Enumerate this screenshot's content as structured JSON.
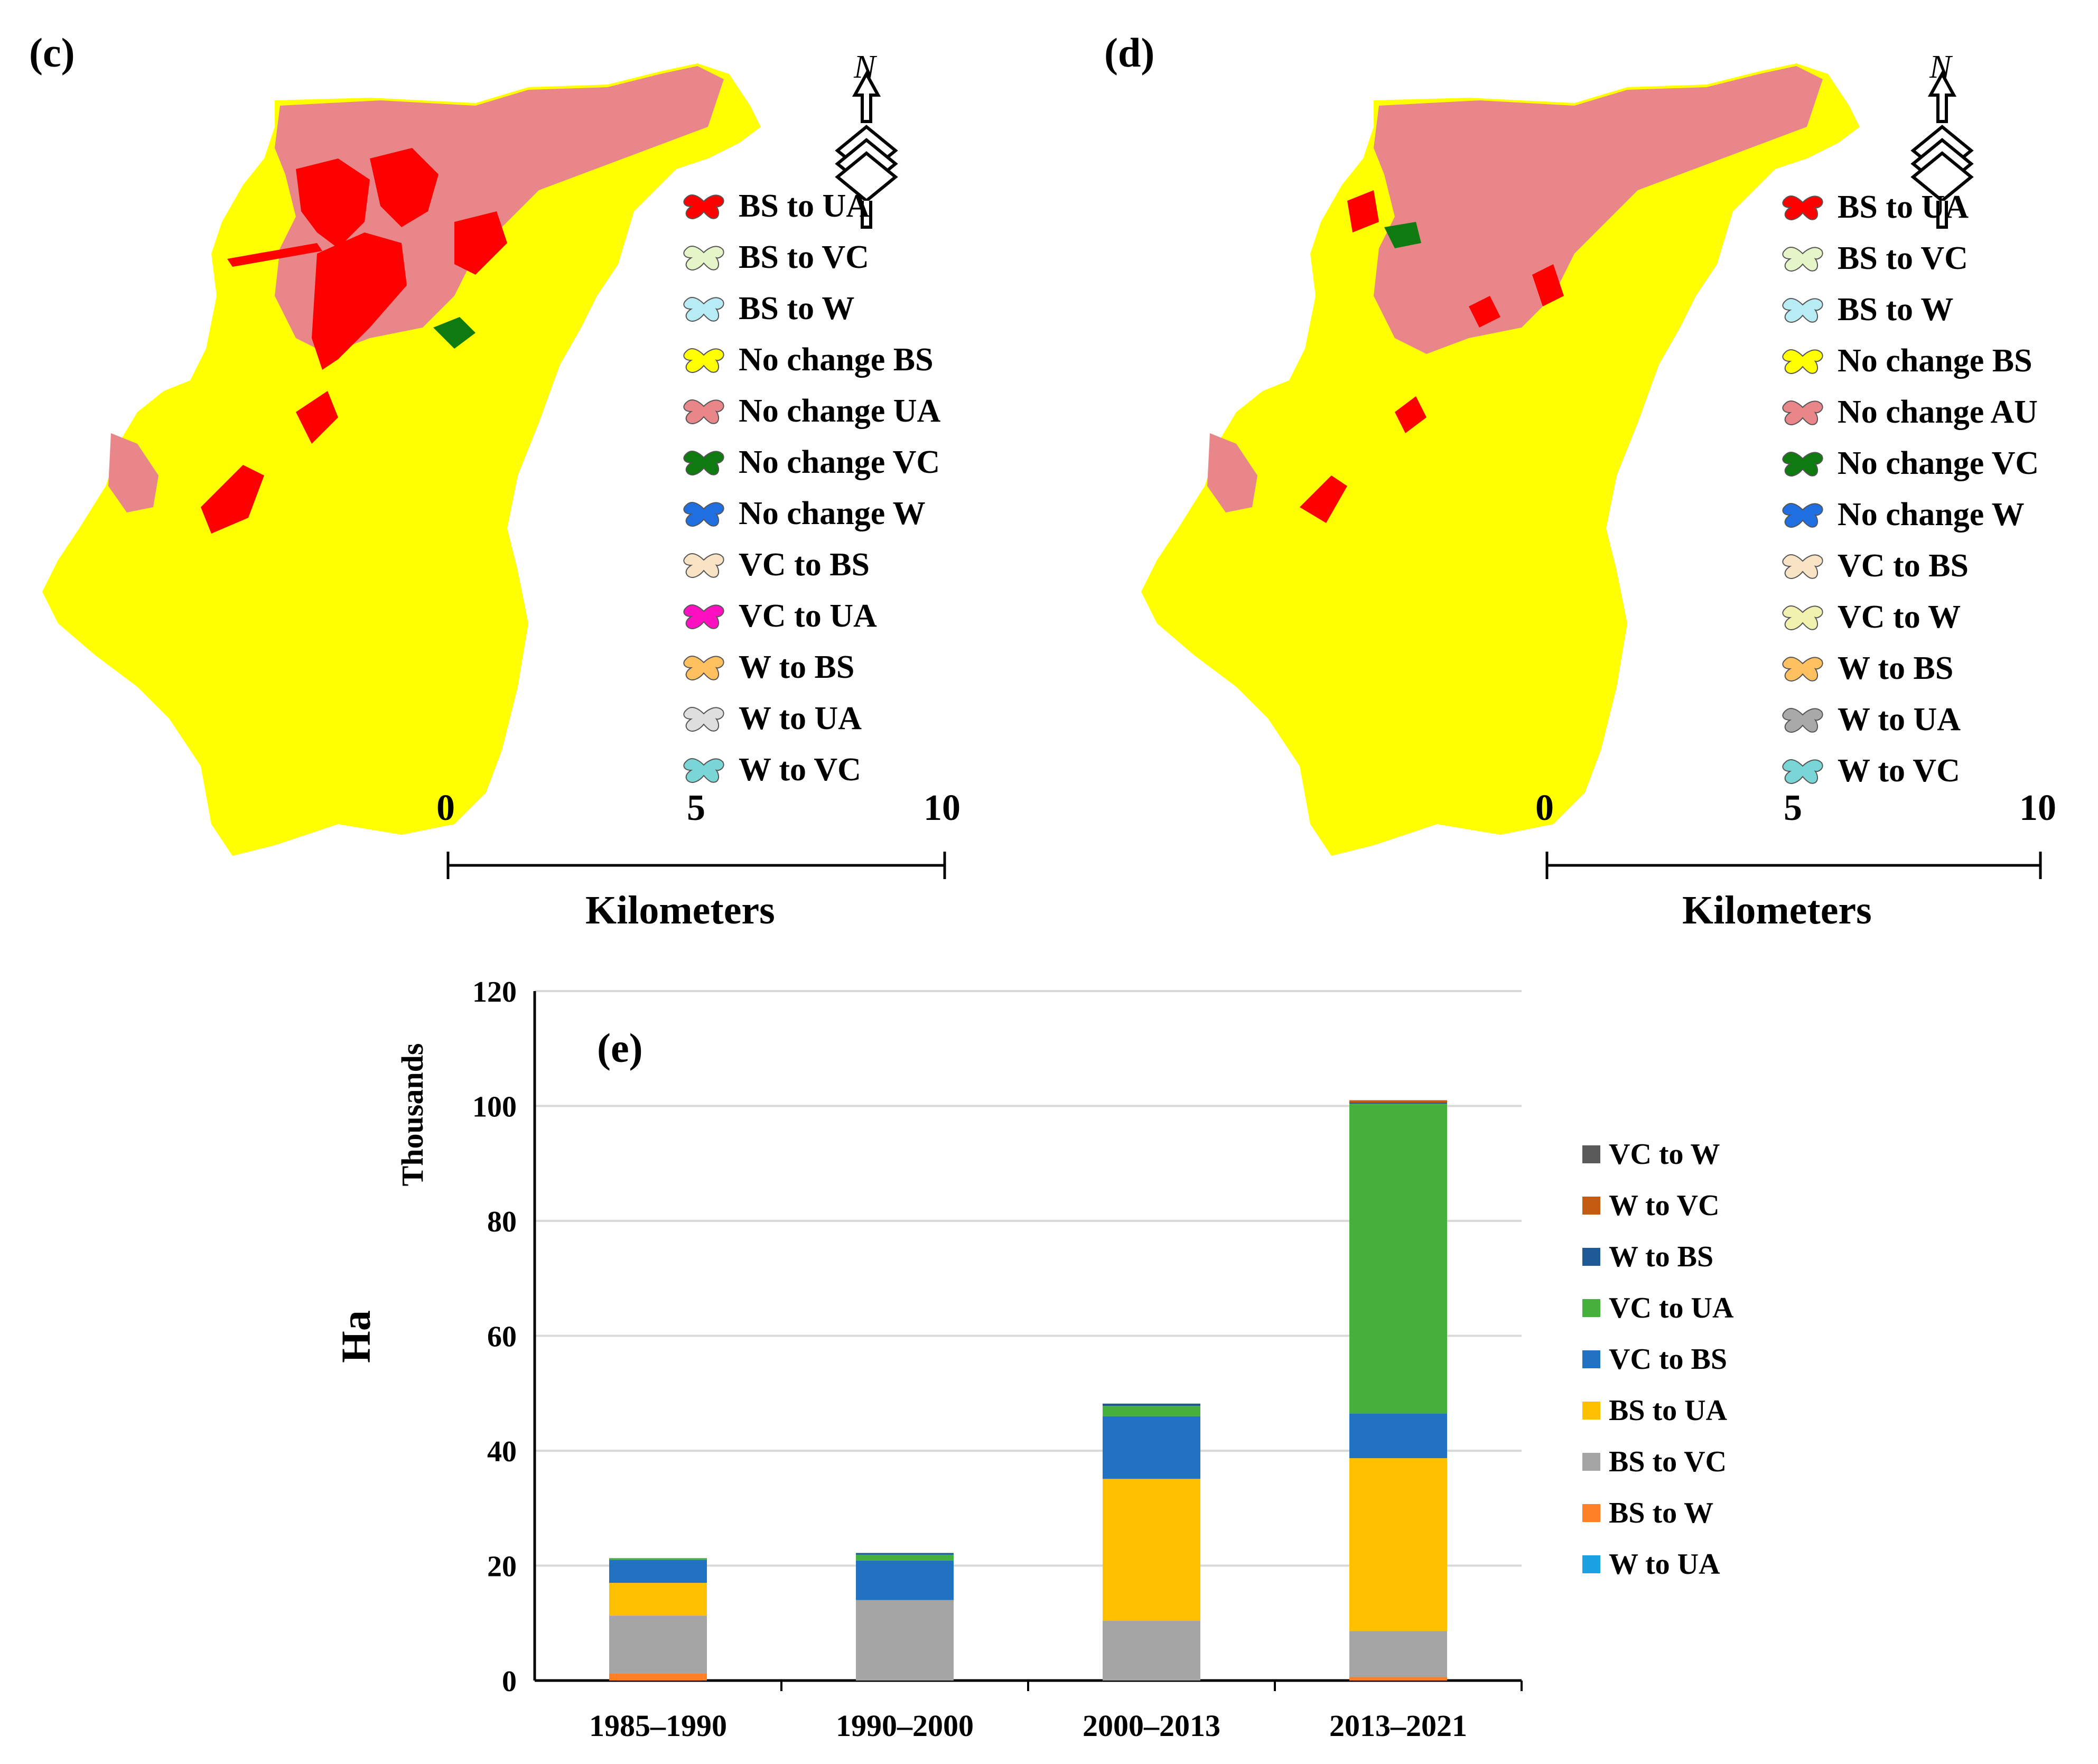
{
  "panels": {
    "c": {
      "label": "(c)",
      "north": "N",
      "legend": [
        {
          "label": "BS to UA",
          "color": "#ff0000"
        },
        {
          "label": "BS to VC",
          "color": "#e6f5c8"
        },
        {
          "label": "BS to W",
          "color": "#b8ecf5"
        },
        {
          "label": "No change BS",
          "color": "#ffff00"
        },
        {
          "label": "No change UA",
          "color": "#e8868a"
        },
        {
          "label": "No change VC",
          "color": "#0f7a0f"
        },
        {
          "label": "No change W",
          "color": "#1f6fe0"
        },
        {
          "label": "VC to BS",
          "color": "#f8e4c4"
        },
        {
          "label": "VC to UA",
          "color": "#ff10c0"
        },
        {
          "label": "W to BS",
          "color": "#ffc060"
        },
        {
          "label": "W to UA",
          "color": "#dedede"
        },
        {
          "label": "W to VC",
          "color": "#7ad6d6"
        }
      ],
      "scale": {
        "ticks": [
          "0",
          "5",
          "10"
        ],
        "unit": "Kilometers"
      }
    },
    "d": {
      "label": "(d)",
      "north": "N",
      "legend": [
        {
          "label": "BS to UA",
          "color": "#ff0000"
        },
        {
          "label": "BS to VC",
          "color": "#e6f5c8"
        },
        {
          "label": "BS to W",
          "color": "#b8ecf5"
        },
        {
          "label": "No change BS",
          "color": "#ffff00"
        },
        {
          "label": "No change AU",
          "color": "#e8868a"
        },
        {
          "label": "No change VC",
          "color": "#0f7a0f"
        },
        {
          "label": "No change W",
          "color": "#1f6fe0"
        },
        {
          "label": "VC to BS",
          "color": "#f8e4c4"
        },
        {
          "label": "VC to W",
          "color": "#f2f2b0"
        },
        {
          "label": "W to BS",
          "color": "#ffc060"
        },
        {
          "label": "W to UA",
          "color": "#a9a9a9"
        },
        {
          "label": "W to VC",
          "color": "#7ad6d6"
        }
      ],
      "scale": {
        "ticks": [
          "0",
          "5",
          "10"
        ],
        "unit": "Kilometers"
      }
    }
  },
  "map_colors": {
    "land": "#ffff00",
    "urban": "#e8868a",
    "new_urban": "#ff0000",
    "veg": "#0f7a0f"
  },
  "chart_data": {
    "type": "bar",
    "stacked": true,
    "label": "(e)",
    "ylabel": "Ha",
    "yunit": "Thousands",
    "ylim": [
      0,
      120
    ],
    "yticks": [
      0,
      20,
      40,
      60,
      80,
      100,
      120
    ],
    "categories": [
      "1985–1990",
      "1990–2000",
      "2000–2013",
      "2013–2021"
    ],
    "series": [
      {
        "name": "W to UA",
        "color": "#1ba1e2",
        "values": [
          0.0,
          0.0,
          0.0,
          0.0
        ]
      },
      {
        "name": "BS to W",
        "color": "#ff7f27",
        "values": [
          1.2,
          0.0,
          0.0,
          0.6
        ]
      },
      {
        "name": "BS to VC",
        "color": "#a5a5a5",
        "values": [
          10.1,
          14.0,
          10.4,
          8.0
        ]
      },
      {
        "name": "BS to UA",
        "color": "#ffc000",
        "values": [
          5.7,
          0.0,
          24.7,
          30.1
        ]
      },
      {
        "name": "VC to BS",
        "color": "#2272c3",
        "values": [
          4.0,
          6.9,
          10.9,
          7.8
        ]
      },
      {
        "name": "VC to UA",
        "color": "#46b03c",
        "values": [
          0.3,
          1.0,
          1.8,
          53.9
        ]
      },
      {
        "name": "W to BS",
        "color": "#1f5a96",
        "values": [
          0.0,
          0.3,
          0.4,
          0.2
        ]
      },
      {
        "name": "W to VC",
        "color": "#c55a11",
        "values": [
          0.0,
          0.0,
          0.0,
          0.4
        ]
      },
      {
        "name": "VC to W",
        "color": "#5a5a5a",
        "values": [
          0.0,
          0.0,
          0.0,
          0.0
        ]
      }
    ],
    "legend_order": [
      "VC to W",
      "W to VC",
      "W to BS",
      "VC to UA",
      "VC to BS",
      "BS to UA",
      "BS to VC",
      "BS to W",
      "W to UA"
    ]
  }
}
